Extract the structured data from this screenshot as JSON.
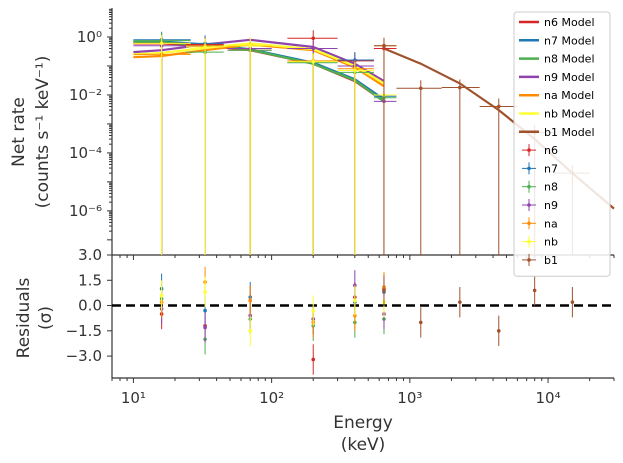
{
  "chart_data": {
    "type": "scatter",
    "x_scale": "log",
    "x_range": [
      7,
      30000
    ],
    "top_panel": {
      "y_scale": "log",
      "y_range": [
        3e-08,
        10
      ],
      "ylabel_line1": "Net rate",
      "ylabel_line2": "(counts s⁻¹ keV⁻¹)",
      "yticks": [
        {
          "value": 1,
          "label": "10⁰"
        },
        {
          "value": 0.01,
          "label": "10⁻²"
        },
        {
          "value": 0.0001,
          "label": "10⁻⁴"
        },
        {
          "value": 1e-06,
          "label": "10⁻⁶"
        }
      ]
    },
    "bottom_panel": {
      "y_range": [
        -4.3,
        3.0
      ],
      "ylabel_line1": "Residuals",
      "ylabel_line2": "(σ)",
      "yticks": [
        {
          "value": 3.0,
          "label": "3.0"
        },
        {
          "value": 1.5,
          "label": "1.5"
        },
        {
          "value": 0.0,
          "label": "0.0"
        },
        {
          "value": -1.5,
          "label": "−1.5"
        },
        {
          "value": -3.0,
          "label": "−3.0"
        }
      ],
      "zero_line": 0
    },
    "xlabel_line1": "Energy",
    "xlabel_line2": "(keV)",
    "xticks": [
      {
        "value": 10,
        "label": "10¹"
      },
      {
        "value": 100,
        "label": "10²"
      },
      {
        "value": 1000,
        "label": "10³"
      },
      {
        "value": 10000,
        "label": "10⁴"
      }
    ],
    "legend_position": "top-right",
    "models": [
      {
        "name": "n6 Model",
        "color": "#d62728",
        "x": [
          10,
          16,
          33,
          70,
          200,
          400,
          650
        ],
        "y": [
          0.6,
          0.6,
          0.5,
          0.35,
          0.12,
          0.03,
          0.006
        ]
      },
      {
        "name": "n7 Model",
        "color": "#1f77b4",
        "x": [
          10,
          16,
          33,
          70,
          200,
          400,
          650
        ],
        "y": [
          0.7,
          0.7,
          0.55,
          0.38,
          0.13,
          0.035,
          0.007
        ]
      },
      {
        "name": "n8 Model",
        "color": "#4caf50",
        "x": [
          10,
          16,
          33,
          70,
          200,
          400,
          650
        ],
        "y": [
          0.65,
          0.65,
          0.52,
          0.36,
          0.12,
          0.032,
          0.006
        ]
      },
      {
        "name": "n9 Model",
        "color": "#8e44ad",
        "x": [
          10,
          16,
          33,
          70,
          200,
          400,
          650
        ],
        "y": [
          0.3,
          0.35,
          0.55,
          0.8,
          0.45,
          0.12,
          0.03
        ]
      },
      {
        "name": "na Model",
        "color": "#ff8c00",
        "x": [
          10,
          16,
          33,
          70,
          200,
          400,
          650
        ],
        "y": [
          0.2,
          0.22,
          0.35,
          0.55,
          0.35,
          0.09,
          0.02
        ]
      },
      {
        "name": "nb Model",
        "color": "#ffff33",
        "x": [
          10,
          16,
          33,
          70,
          200,
          400,
          650
        ],
        "y": [
          0.25,
          0.28,
          0.42,
          0.6,
          0.38,
          0.1,
          0.025
        ]
      },
      {
        "name": "b1 Model",
        "color": "#a0522d",
        "x": [
          650,
          1200,
          2300,
          4400,
          8000,
          15000,
          30000
        ],
        "y": [
          0.4,
          0.12,
          0.025,
          0.003,
          0.0003,
          2e-05,
          1.2e-06
        ]
      }
    ],
    "data_series": [
      {
        "name": "n6",
        "color": "#d62728",
        "points": [
          {
            "x": 16,
            "y": 0.6,
            "xlo": 10,
            "xhi": 26,
            "res": -0.5
          },
          {
            "x": 33,
            "y": 0.55,
            "xlo": 24,
            "xhi": 45,
            "res": -1.2
          },
          {
            "x": 70,
            "y": 0.35,
            "xlo": 48,
            "xhi": 100,
            "res": 0.3
          },
          {
            "x": 200,
            "y": 0.9,
            "xlo": 130,
            "xhi": 300,
            "res": -3.2
          },
          {
            "x": 400,
            "y": 0.15,
            "xlo": 300,
            "xhi": 550,
            "res": 0.5
          },
          {
            "x": 650,
            "y": 0.4,
            "xlo": 550,
            "xhi": 800,
            "res": 1.0
          }
        ]
      },
      {
        "name": "n7",
        "color": "#1f77b4",
        "points": [
          {
            "x": 16,
            "y": 0.8,
            "xlo": 10,
            "xhi": 26,
            "res": 1.0
          },
          {
            "x": 33,
            "y": 0.6,
            "xlo": 24,
            "xhi": 45,
            "res": -0.3
          },
          {
            "x": 70,
            "y": 0.4,
            "xlo": 48,
            "xhi": 100,
            "res": 0.5
          },
          {
            "x": 200,
            "y": 0.13,
            "xlo": 130,
            "xhi": 300,
            "res": -0.8
          },
          {
            "x": 400,
            "y": 0.16,
            "xlo": 300,
            "xhi": 550,
            "res": 0.2
          },
          {
            "x": 650,
            "y": 0.009,
            "xlo": 550,
            "xhi": 800,
            "res": 0.8
          }
        ]
      },
      {
        "name": "n8",
        "color": "#4caf50",
        "points": [
          {
            "x": 16,
            "y": 0.75,
            "xlo": 10,
            "xhi": 26,
            "res": 0.4
          },
          {
            "x": 33,
            "y": 0.3,
            "xlo": 24,
            "xhi": 45,
            "res": -2.0
          },
          {
            "x": 70,
            "y": 0.35,
            "xlo": 48,
            "xhi": 100,
            "res": -0.8
          },
          {
            "x": 200,
            "y": 0.13,
            "xlo": 130,
            "xhi": 300,
            "res": -1.2
          },
          {
            "x": 400,
            "y": 0.06,
            "xlo": 300,
            "xhi": 550,
            "res": -1.0
          },
          {
            "x": 650,
            "y": 0.008,
            "xlo": 550,
            "xhi": 800,
            "res": -0.8
          }
        ]
      },
      {
        "name": "n9",
        "color": "#8e44ad",
        "points": [
          {
            "x": 16,
            "y": 0.5,
            "xlo": 10,
            "xhi": 26,
            "res": -0.2
          },
          {
            "x": 33,
            "y": 0.45,
            "xlo": 24,
            "xhi": 45,
            "res": -1.3
          },
          {
            "x": 70,
            "y": 0.4,
            "xlo": 48,
            "xhi": 100,
            "res": -0.6
          },
          {
            "x": 200,
            "y": 0.4,
            "xlo": 130,
            "xhi": 300,
            "res": -0.8
          },
          {
            "x": 400,
            "y": 0.1,
            "xlo": 300,
            "xhi": 550,
            "res": 1.2
          },
          {
            "x": 650,
            "y": 0.006,
            "xlo": 550,
            "xhi": 800,
            "res": -0.5
          }
        ]
      },
      {
        "name": "na",
        "color": "#ff8c00",
        "points": [
          {
            "x": 16,
            "y": 0.25,
            "xlo": 10,
            "xhi": 26,
            "res": 0.2
          },
          {
            "x": 33,
            "y": 0.5,
            "xlo": 24,
            "xhi": 45,
            "res": 1.4
          },
          {
            "x": 70,
            "y": 0.5,
            "xlo": 48,
            "xhi": 100,
            "res": 0.3
          },
          {
            "x": 200,
            "y": 0.15,
            "xlo": 130,
            "xhi": 300,
            "res": -1.0
          },
          {
            "x": 400,
            "y": 0.08,
            "xlo": 300,
            "xhi": 550,
            "res": -0.6
          },
          {
            "x": 650,
            "y": 0.5,
            "xlo": 550,
            "xhi": 800,
            "res": 1.1
          }
        ]
      },
      {
        "name": "nb",
        "color": "#ffff33",
        "points": [
          {
            "x": 16,
            "y": 0.6,
            "xlo": 10,
            "xhi": 26,
            "res": 0.6
          },
          {
            "x": 33,
            "y": 0.45,
            "xlo": 24,
            "xhi": 45,
            "res": 0.8
          },
          {
            "x": 70,
            "y": 0.5,
            "xlo": 48,
            "xhi": 100,
            "res": -1.5
          },
          {
            "x": 200,
            "y": 0.14,
            "xlo": 130,
            "xhi": 300,
            "res": -0.3
          },
          {
            "x": 400,
            "y": 0.07,
            "xlo": 300,
            "xhi": 550,
            "res": 0.3
          },
          {
            "x": 650,
            "y": 0.01,
            "xlo": 550,
            "xhi": 800,
            "res": 0.2
          }
        ]
      },
      {
        "name": "b1",
        "color": "#a0522d",
        "points": [
          {
            "x": 650,
            "y": 0.5,
            "xlo": 550,
            "xhi": 800,
            "res": 0.9
          },
          {
            "x": 1200,
            "y": 0.017,
            "xlo": 800,
            "xhi": 1700,
            "res": -1.0
          },
          {
            "x": 2300,
            "y": 0.018,
            "xlo": 1700,
            "xhi": 3200,
            "res": 0.2
          },
          {
            "x": 4400,
            "y": 0.004,
            "xlo": 3200,
            "xhi": 6000,
            "res": -1.5
          },
          {
            "x": 8000,
            "y": 0.0005,
            "xlo": 6000,
            "xhi": 11000,
            "res": 0.9
          },
          {
            "x": 15000,
            "y": 2e-05,
            "xlo": 11000,
            "xhi": 20000,
            "res": 0.2
          }
        ]
      }
    ]
  }
}
